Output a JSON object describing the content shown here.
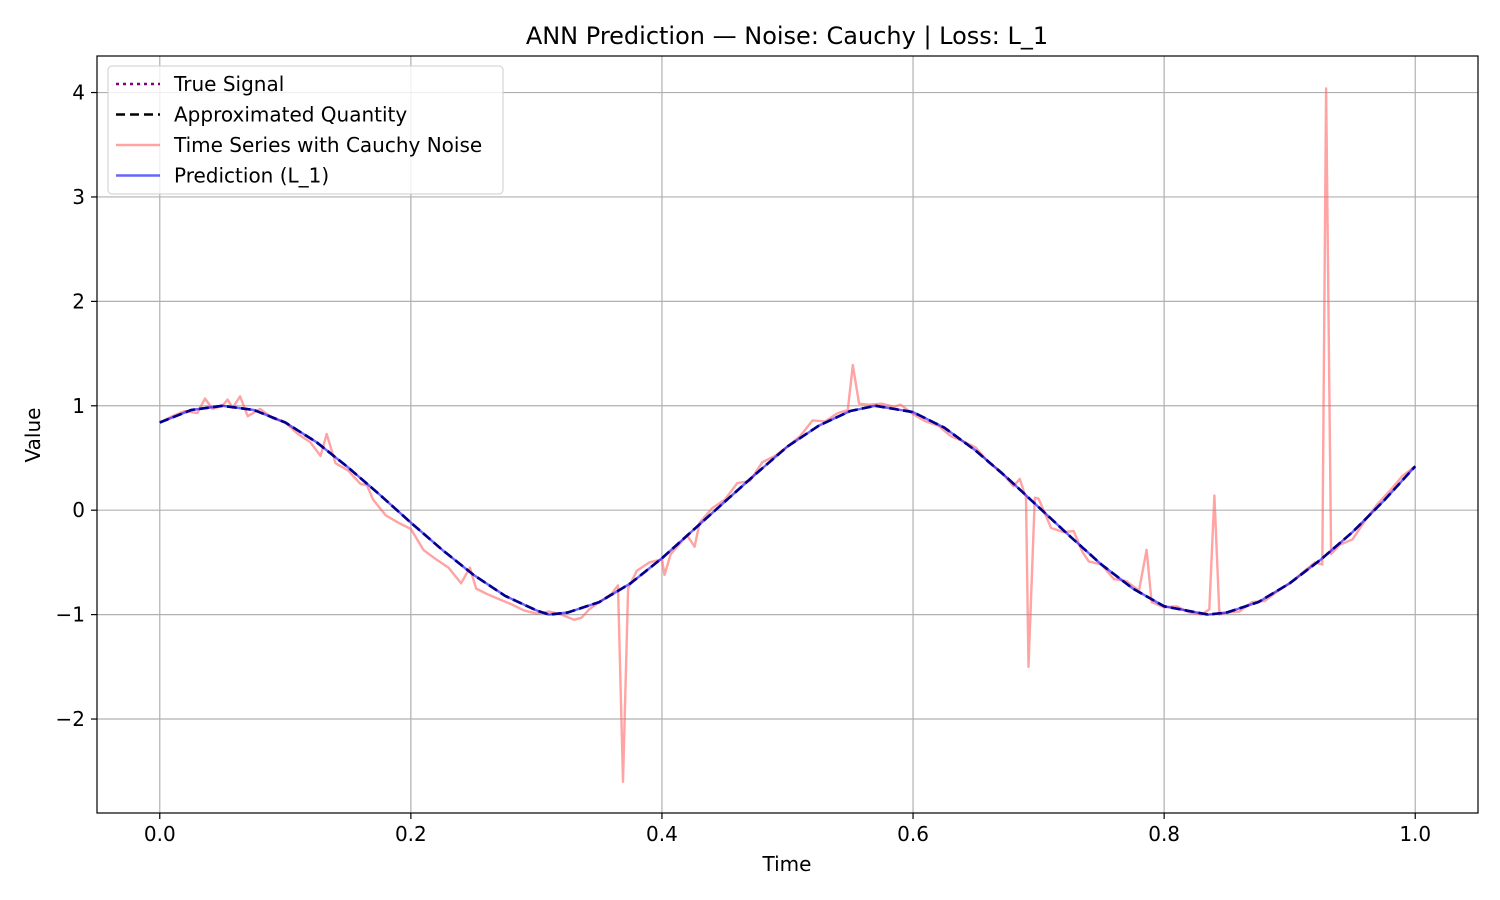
{
  "chart_data": {
    "type": "line",
    "title": "ANN Prediction — Noise: Cauchy | Loss: L_1",
    "xlabel": "Time",
    "ylabel": "Value",
    "xlim": [
      -0.05,
      1.05
    ],
    "ylim": [
      -2.9,
      4.35
    ],
    "xticks": [
      0.0,
      0.2,
      0.4,
      0.6,
      0.8,
      1.0
    ],
    "xtick_labels": [
      "0.0",
      "0.2",
      "0.4",
      "0.6",
      "0.8",
      "1.0"
    ],
    "yticks": [
      -2,
      -1,
      0,
      1,
      2,
      3,
      4
    ],
    "ytick_labels": [
      "−2",
      "−1",
      "0",
      "1",
      "2",
      "3",
      "4"
    ],
    "grid": true,
    "legend_position": "top-left",
    "series": [
      {
        "name": "True Signal",
        "color": "#800080",
        "style": "dotted",
        "x": [
          0.0,
          0.025,
          0.05,
          0.075,
          0.1,
          0.125,
          0.15,
          0.175,
          0.2,
          0.225,
          0.25,
          0.275,
          0.3,
          0.31,
          0.325,
          0.35,
          0.375,
          0.4,
          0.425,
          0.45,
          0.475,
          0.5,
          0.525,
          0.55,
          0.57,
          0.6,
          0.625,
          0.65,
          0.675,
          0.7,
          0.725,
          0.75,
          0.775,
          0.8,
          0.835,
          0.85,
          0.875,
          0.9,
          0.925,
          0.95,
          0.975,
          1.0
        ],
        "y": [
          0.84,
          0.96,
          1.0,
          0.96,
          0.84,
          0.65,
          0.41,
          0.15,
          -0.12,
          -0.38,
          -0.62,
          -0.82,
          -0.96,
          -1.0,
          -0.98,
          -0.88,
          -0.7,
          -0.46,
          -0.19,
          0.08,
          0.35,
          0.61,
          0.81,
          0.95,
          1.0,
          0.94,
          0.79,
          0.57,
          0.31,
          0.03,
          -0.25,
          -0.52,
          -0.75,
          -0.92,
          -1.0,
          -0.98,
          -0.88,
          -0.7,
          -0.47,
          -0.21,
          0.09,
          0.42
        ]
      },
      {
        "name": "Approximated Quantity",
        "color": "#000000",
        "style": "dashed",
        "x": [
          0.0,
          0.025,
          0.05,
          0.075,
          0.1,
          0.125,
          0.15,
          0.175,
          0.2,
          0.225,
          0.25,
          0.275,
          0.3,
          0.31,
          0.325,
          0.35,
          0.375,
          0.4,
          0.425,
          0.45,
          0.475,
          0.5,
          0.525,
          0.55,
          0.57,
          0.6,
          0.625,
          0.65,
          0.675,
          0.7,
          0.725,
          0.75,
          0.775,
          0.8,
          0.835,
          0.85,
          0.875,
          0.9,
          0.925,
          0.95,
          0.975,
          1.0
        ],
        "y": [
          0.84,
          0.96,
          1.0,
          0.96,
          0.84,
          0.65,
          0.41,
          0.15,
          -0.12,
          -0.38,
          -0.62,
          -0.82,
          -0.96,
          -1.0,
          -0.98,
          -0.88,
          -0.7,
          -0.46,
          -0.19,
          0.08,
          0.35,
          0.61,
          0.81,
          0.95,
          1.0,
          0.94,
          0.79,
          0.57,
          0.31,
          0.03,
          -0.25,
          -0.52,
          -0.75,
          -0.92,
          -1.0,
          -0.98,
          -0.88,
          -0.7,
          -0.47,
          -0.21,
          0.09,
          0.42
        ]
      },
      {
        "name": "Time Series with Cauchy Noise",
        "color": "#ff6666",
        "style": "solid",
        "opacity": 0.6,
        "x": [
          0.0,
          0.01,
          0.02,
          0.03,
          0.036,
          0.042,
          0.05,
          0.054,
          0.058,
          0.064,
          0.07,
          0.08,
          0.09,
          0.1,
          0.11,
          0.12,
          0.128,
          0.133,
          0.14,
          0.15,
          0.16,
          0.165,
          0.17,
          0.18,
          0.19,
          0.2,
          0.21,
          0.22,
          0.23,
          0.24,
          0.247,
          0.252,
          0.26,
          0.27,
          0.28,
          0.29,
          0.3,
          0.31,
          0.32,
          0.33,
          0.336,
          0.342,
          0.35,
          0.36,
          0.365,
          0.369,
          0.373,
          0.38,
          0.39,
          0.4,
          0.402,
          0.407,
          0.42,
          0.426,
          0.43,
          0.44,
          0.45,
          0.46,
          0.47,
          0.48,
          0.49,
          0.5,
          0.51,
          0.52,
          0.53,
          0.54,
          0.548,
          0.552,
          0.557,
          0.565,
          0.575,
          0.585,
          0.59,
          0.6,
          0.61,
          0.62,
          0.63,
          0.64,
          0.65,
          0.66,
          0.67,
          0.68,
          0.685,
          0.689,
          0.69,
          0.692,
          0.697,
          0.7,
          0.71,
          0.72,
          0.728,
          0.735,
          0.74,
          0.75,
          0.76,
          0.77,
          0.78,
          0.786,
          0.79,
          0.8,
          0.81,
          0.82,
          0.83,
          0.836,
          0.84,
          0.844,
          0.85,
          0.86,
          0.87,
          0.88,
          0.89,
          0.9,
          0.91,
          0.92,
          0.926,
          0.929,
          0.933,
          0.94,
          0.95,
          0.96,
          0.97,
          0.98,
          0.99,
          1.0
        ],
        "y": [
          0.84,
          0.9,
          0.95,
          0.93,
          1.07,
          0.97,
          1.0,
          1.06,
          0.98,
          1.09,
          0.9,
          0.97,
          0.88,
          0.84,
          0.73,
          0.65,
          0.52,
          0.73,
          0.45,
          0.38,
          0.25,
          0.24,
          0.1,
          -0.05,
          -0.12,
          -0.18,
          -0.38,
          -0.47,
          -0.55,
          -0.7,
          -0.55,
          -0.75,
          -0.8,
          -0.85,
          -0.9,
          -0.96,
          -0.99,
          -0.97,
          -1.0,
          -1.05,
          -1.03,
          -0.95,
          -0.88,
          -0.8,
          -0.72,
          -2.6,
          -0.75,
          -0.58,
          -0.5,
          -0.47,
          -0.62,
          -0.42,
          -0.24,
          -0.35,
          -0.12,
          0.02,
          0.1,
          0.26,
          0.28,
          0.46,
          0.52,
          0.61,
          0.71,
          0.86,
          0.85,
          0.93,
          0.96,
          1.39,
          1.02,
          1.01,
          1.02,
          0.99,
          1.01,
          0.92,
          0.85,
          0.81,
          0.71,
          0.66,
          0.6,
          0.46,
          0.37,
          0.23,
          0.3,
          0.15,
          0.13,
          -1.5,
          0.12,
          0.11,
          -0.17,
          -0.21,
          -0.2,
          -0.4,
          -0.49,
          -0.52,
          -0.66,
          -0.68,
          -0.77,
          -0.38,
          -0.88,
          -0.93,
          -0.92,
          -0.98,
          -1.0,
          -0.95,
          0.14,
          -1.0,
          -0.98,
          -0.97,
          -0.88,
          -0.87,
          -0.78,
          -0.7,
          -0.6,
          -0.5,
          -0.52,
          4.04,
          -0.42,
          -0.33,
          -0.28,
          -0.1,
          0.06,
          0.19,
          0.33,
          0.42
        ]
      },
      {
        "name": "Prediction (L_1)",
        "color": "#0000ff",
        "style": "solid",
        "opacity": 0.6,
        "x": [
          0.0,
          0.025,
          0.05,
          0.075,
          0.1,
          0.125,
          0.15,
          0.175,
          0.2,
          0.225,
          0.25,
          0.275,
          0.3,
          0.31,
          0.325,
          0.35,
          0.375,
          0.4,
          0.425,
          0.45,
          0.475,
          0.5,
          0.525,
          0.55,
          0.57,
          0.6,
          0.625,
          0.65,
          0.675,
          0.7,
          0.725,
          0.75,
          0.775,
          0.8,
          0.835,
          0.85,
          0.875,
          0.9,
          0.925,
          0.95,
          0.975,
          1.0
        ],
        "y": [
          0.84,
          0.96,
          1.0,
          0.96,
          0.84,
          0.65,
          0.41,
          0.15,
          -0.12,
          -0.38,
          -0.62,
          -0.82,
          -0.96,
          -1.0,
          -0.98,
          -0.88,
          -0.7,
          -0.46,
          -0.19,
          0.08,
          0.35,
          0.61,
          0.81,
          0.95,
          1.0,
          0.94,
          0.79,
          0.57,
          0.31,
          0.03,
          -0.25,
          -0.52,
          -0.75,
          -0.92,
          -1.0,
          -0.98,
          -0.88,
          -0.7,
          -0.47,
          -0.21,
          0.09,
          0.42
        ]
      }
    ]
  }
}
